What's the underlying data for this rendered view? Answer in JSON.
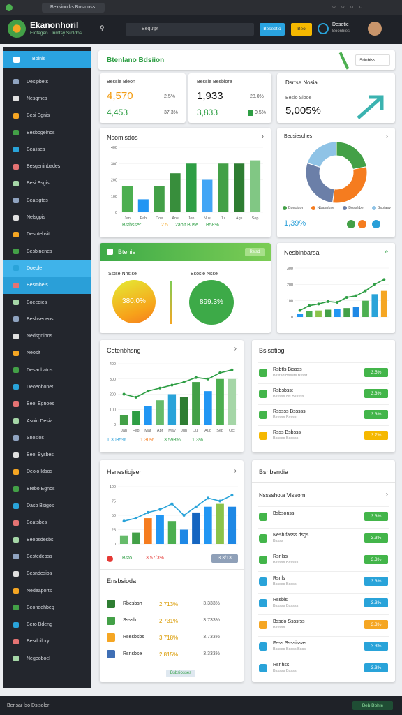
{
  "browser": {
    "tab": "Bexsino ks Bosldoss"
  },
  "header": {
    "title": "Ekanonhoril",
    "subtitle": "Elotegen | Inmtsy Sroldos",
    "search": "Bequtpt",
    "primary_button": "Beseetio",
    "secondary_button": "Beo",
    "user_name": "Desetie",
    "user_role": "Boonbies"
  },
  "sidebar": {
    "active": "Boinis",
    "items": [
      "Desipbets",
      "Nesgmes",
      "Besi Egnis",
      "Besbogelnos",
      "Bealises",
      "Besgeninbades",
      "Besi Esgis",
      "Bealsgtes",
      "Nelsgpis",
      "Desotebsit",
      "Besbinenes",
      "Doeple",
      "Besmbeis",
      "Boeedies",
      "Besbsedeos",
      "Nedsgnibos",
      "Neosit",
      "Desanbatos",
      "Deoeobonet",
      "Beoi Egnoes",
      "Asoin Desia",
      "Snoslos",
      "Beoi Bysbes",
      "Deolo Idsos",
      "Brebo Egnos",
      "Dasb Bsigos",
      "Beatsbes",
      "Beobsdesbs",
      "Bestedebss",
      "Besndesios",
      "Nedeaports",
      "Beoneehbeg",
      "Bero Bdeng",
      "Besdoilory",
      "Negeoboel"
    ]
  },
  "page": {
    "title": "Btenlano Bdsiion",
    "filter": "Sdnbiss"
  },
  "stats": [
    {
      "label": "Bessie Bleon",
      "value": "4,570",
      "change": "2.5%",
      "value2": "4,453",
      "change2": "37.3%"
    },
    {
      "label": "Bessie Besbiore",
      "value": "1,933",
      "change": "28.0%",
      "value2": "3,833",
      "change2": "0.5%"
    },
    {
      "label": "Dsrtse Nosia",
      "sub": "Besio Slooe",
      "value": "5,005%"
    }
  ],
  "main_chart": {
    "title": "Nsomisdos",
    "footer": [
      "Bsthsser",
      "2.5",
      "2ablt Buse",
      "B58%"
    ],
    "chart_data": {
      "type": "bar",
      "categories": [
        "Jan",
        "Fab",
        "Doe",
        "Ans",
        "Jen",
        "Nus",
        "Jul",
        "Ags",
        "Sep"
      ],
      "values": [
        160,
        80,
        160,
        240,
        300,
        200,
        300,
        300,
        320
      ],
      "colors": [
        "#4caf50",
        "#2196f3",
        "#43a047",
        "#388e3c",
        "#2e9e44",
        "#42a5f5",
        "#43a047",
        "#2e7d32",
        "#81c784"
      ],
      "ylim": [
        0,
        400
      ],
      "yticks": [
        0,
        100,
        200,
        300,
        400
      ]
    }
  },
  "pie": {
    "title": "Beosiesohes",
    "legend": [
      "Bseoisor",
      "Nbasnbse",
      "Bosshbe",
      "Bsoiasy"
    ],
    "value": "1,39%",
    "chart_data": {
      "type": "donut",
      "values": [
        22,
        30,
        28,
        20
      ],
      "colors": [
        "#43a047",
        "#f57c1f",
        "#6b7fa8",
        "#8fc3e6"
      ]
    }
  },
  "gauges": {
    "title": "Btenis",
    "badge": "Rsisd",
    "labels": [
      "Sstse Nhsise",
      "Bsosie Nsse"
    ],
    "values": [
      "380.0%",
      "899.3%"
    ]
  },
  "trend_chart": {
    "title": "Nesbinbarsa",
    "chart_data": {
      "type": "bar",
      "values": [
        20,
        35,
        40,
        45,
        50,
        55,
        60,
        100,
        140,
        160
      ],
      "colors": [
        "#2196f3",
        "#4caf50",
        "#8bc34a",
        "#43a047",
        "#2196f3",
        "#43a047",
        "#1e88e5",
        "#4caf50",
        "#29a3d9",
        "#f5a623"
      ],
      "line_values": [
        40,
        70,
        80,
        95,
        90,
        120,
        130,
        160,
        200,
        230
      ],
      "line_color": "#2e9e44",
      "ylim": [
        0,
        300
      ],
      "yticks": [
        0,
        100,
        200,
        300
      ]
    }
  },
  "growth_chart": {
    "title": "Cetenbhsng",
    "footer": [
      "1.3035%",
      "1.30%",
      "3.593%",
      "1.3%"
    ],
    "chart_data": {
      "type": "bar",
      "categories": [
        "Jan",
        "Feb",
        "Mar",
        "Apr",
        "May",
        "Jun",
        "Jul",
        "Aug",
        "Sep",
        "Oct"
      ],
      "values": [
        60,
        90,
        120,
        160,
        200,
        180,
        280,
        220,
        300,
        300
      ],
      "colors": [
        "#43a047",
        "#2e9e44",
        "#2196f3",
        "#66bb6a",
        "#29a3d9",
        "#2e7d32",
        "#43a047",
        "#2196f3",
        "#4caf50",
        "#a5d6a7"
      ],
      "line_values": [
        200,
        180,
        220,
        240,
        260,
        280,
        310,
        300,
        340,
        360
      ],
      "line_color": "#2e9e44",
      "ylim": [
        0,
        400
      ],
      "yticks": [
        0,
        100,
        200,
        300,
        400
      ]
    }
  },
  "ranking": {
    "title": "Bslsotiog",
    "items": [
      {
        "name": "Rsbtls Bissss",
        "sub": "Bsstsd Bsssts Bssst",
        "badge": "3.5%",
        "color": "#43b54a"
      },
      {
        "name": "Rsbsbsst",
        "sub": "Bsssss Ns Bsssss",
        "badge": "3.3%",
        "color": "#43b54a"
      },
      {
        "name": "Rsssss Bsssss",
        "sub": "Bsssss Bssss",
        "badge": "3.3%",
        "color": "#43b54a"
      },
      {
        "name": "Rsss Bsbsss",
        "sub": "Bsssss Bsssss",
        "badge": "3.7%",
        "color": "#f5b800"
      }
    ]
  },
  "history_chart": {
    "title": "Hsnestiojsen",
    "footer": [
      "Bsto",
      "3.57/3%",
      "3.3/13"
    ],
    "chart_data": {
      "type": "bar",
      "values": [
        15,
        20,
        45,
        50,
        40,
        25,
        55,
        65,
        70,
        65
      ],
      "colors": [
        "#66bb6a",
        "#43a047",
        "#f57c1f",
        "#2196f3",
        "#4caf50",
        "#1e88e5",
        "#1565c0",
        "#2196f3",
        "#8bc34a",
        "#1e88e5"
      ],
      "line_values": [
        40,
        45,
        55,
        60,
        70,
        50,
        65,
        80,
        75,
        85
      ],
      "line_color": "#29a3d9",
      "ylim": [
        0,
        100
      ],
      "yticks": [
        0,
        25,
        50,
        75,
        100
      ]
    }
  },
  "table": {
    "title": "Ensbsioda",
    "rows": [
      [
        "Rbesbsh",
        "2.713%",
        "3.333%"
      ],
      [
        "Ssssh",
        "2.731%",
        "3.733%"
      ],
      [
        "Rsesbsbs",
        "3.718%",
        "3.733%"
      ],
      [
        "Rsnsbse",
        "2.815%",
        "3.333%"
      ]
    ],
    "footer": "Bsbsiosses"
  },
  "activity": {
    "title": "Bsnbsndia",
    "subtitle": "Nsssshota Vlseom",
    "items": [
      {
        "name": "Bsbsonss",
        "sub": "",
        "badge": "3.3%",
        "color": "#43b54a"
      },
      {
        "name": "Nesb fasss dsgs",
        "sub": "Bssss",
        "badge": "3.3%",
        "color": "#43b54a"
      },
      {
        "name": "Rsnlss",
        "sub": "Bsssss Bsssss",
        "badge": "3.3%",
        "color": "#43b54a"
      },
      {
        "name": "Rsnls",
        "sub": "Bsssss Bssss",
        "badge": "3.3%",
        "color": "#29a3d9"
      },
      {
        "name": "Rssbls",
        "sub": "Bsssss Bsssss",
        "badge": "3.3%",
        "color": "#29a3d9"
      },
      {
        "name": "Bssdo Ssssfss",
        "sub": "Bsssss",
        "badge": "3.3%",
        "color": "#f5a623"
      },
      {
        "name": "Fess Ssssissas",
        "sub": "Bsssss Bssss Bsss",
        "badge": "3.3%",
        "color": "#29a3d9"
      },
      {
        "name": "Rsnhss",
        "sub": "Bsssss Bssss",
        "badge": "3.3%",
        "color": "#29a3d9"
      }
    ]
  },
  "status": {
    "left": "Bensar lso Dslsolor",
    "right": "Beb Bbhte"
  }
}
